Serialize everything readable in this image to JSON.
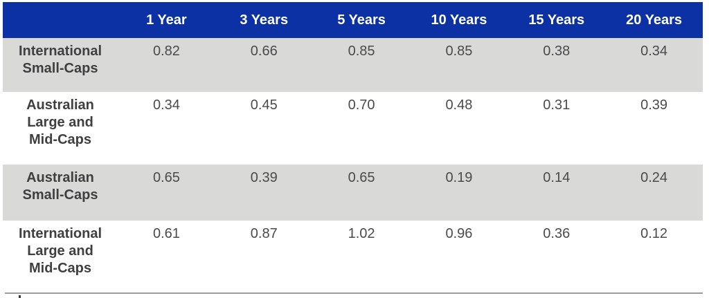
{
  "chart_data": {
    "type": "table",
    "title": "",
    "corner_header": "",
    "columns": [
      "1 Year",
      "3 Years",
      "5 Years",
      "10 Years",
      "15 Years",
      "20 Years"
    ],
    "rows": [
      {
        "label": "International Small-Caps",
        "label_lines": [
          "International",
          "Small-Caps"
        ],
        "values": [
          "0.82",
          "0.66",
          "0.85",
          "0.85",
          "0.38",
          "0.34"
        ]
      },
      {
        "label": "Australian Large and Mid-Caps",
        "label_lines": [
          "Australian",
          "Large and",
          "Mid-Caps"
        ],
        "values": [
          "0.34",
          "0.45",
          "0.70",
          "0.48",
          "0.31",
          "0.39"
        ]
      },
      {
        "label": "Australian Small-Caps",
        "label_lines": [
          "Australian",
          "Small-Caps"
        ],
        "values": [
          "0.65",
          "0.39",
          "0.65",
          "0.19",
          "0.14",
          "0.24"
        ]
      },
      {
        "label": "International Large and Mid-Caps",
        "label_lines": [
          "International",
          "Large and",
          "Mid-Caps"
        ],
        "values": [
          "0.61",
          "0.87",
          "1.02",
          "0.96",
          "0.36",
          "0.12"
        ]
      }
    ],
    "layout_hints": {
      "zebra_striping": "rows 1 and 3 shaded light gray",
      "value_alignment": "top-center"
    }
  },
  "colors": {
    "header_bg": "#0B31A5",
    "header_text": "#FFFFFF",
    "shaded_row_bg": "#D9D9D8",
    "body_text": "#3F3F3F",
    "divider": "#9B9B9B"
  }
}
